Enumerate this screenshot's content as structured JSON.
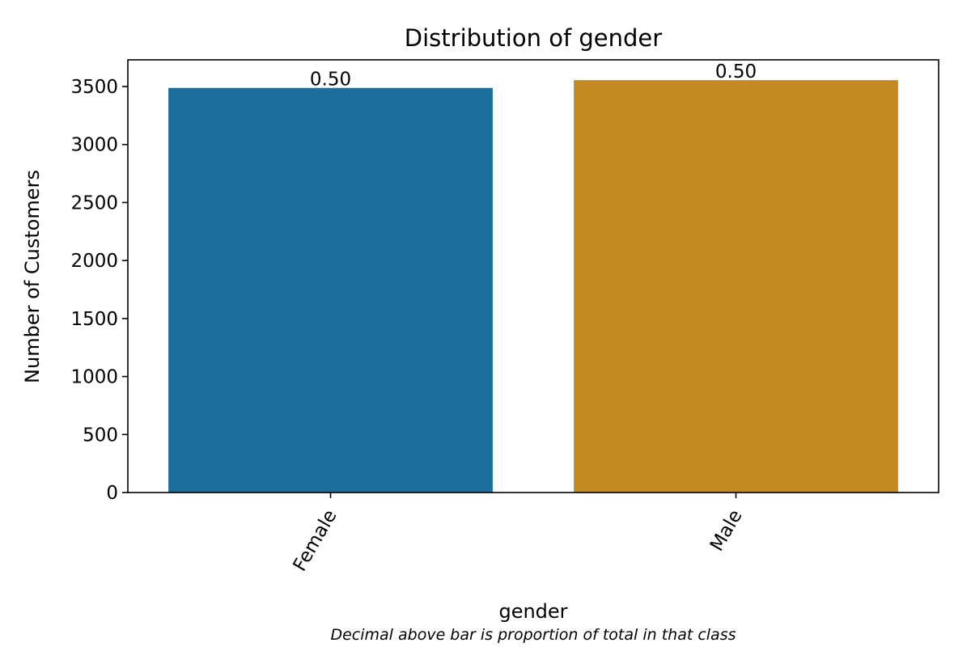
{
  "chart_data": {
    "type": "bar",
    "title": "Distribution of gender",
    "xlabel": "gender",
    "ylabel": "Number of Customers",
    "footnote": "Decimal above bar is proportion of total in that class",
    "categories": [
      "Female",
      "Male"
    ],
    "values": [
      3488,
      3555
    ],
    "bar_labels": [
      "0.50",
      "0.50"
    ],
    "colors": [
      "#1a6e9e",
      "#c28a21"
    ],
    "ylim": [
      0,
      3730
    ],
    "yticks": [
      0,
      500,
      1000,
      1500,
      2000,
      2500,
      3000,
      3500
    ],
    "ytick_labels": [
      "0",
      "500",
      "1000",
      "1500",
      "2000",
      "2500",
      "3000",
      "3500"
    ],
    "grid": false,
    "legend": "none"
  }
}
